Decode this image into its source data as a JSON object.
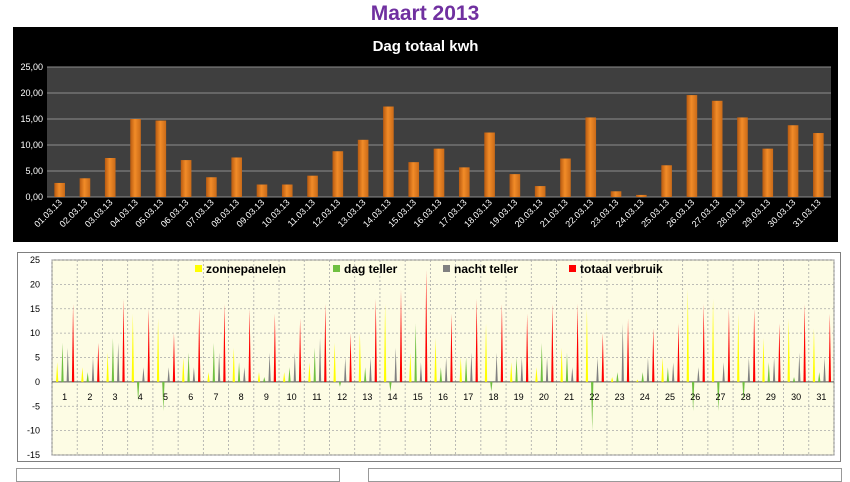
{
  "page_title": "Maart 2013",
  "chart_data": [
    {
      "type": "bar",
      "title": "Dag totaal kwh",
      "categories": [
        "01.03.13",
        "02.03.13",
        "03.03.13",
        "04.03.13",
        "05.03.13",
        "06.03.13",
        "07.03.13",
        "08.03.13",
        "09.03.13",
        "10.03.13",
        "11.03.13",
        "12.03.13",
        "13.03.13",
        "14.03.13",
        "15.03.13",
        "16.03.13",
        "17.03.13",
        "18.03.13",
        "19.03.13",
        "20.03.13",
        "21.03.13",
        "22.03.13",
        "23.03.13",
        "24.03.13",
        "25.03.13",
        "26.03.13",
        "27.03.13",
        "28.03.13",
        "29.03.13",
        "30.03.13",
        "31.03.13"
      ],
      "values": [
        2.7,
        3.6,
        7.5,
        15.0,
        14.7,
        7.1,
        3.8,
        7.6,
        2.4,
        2.4,
        4.1,
        8.8,
        11.0,
        17.4,
        6.7,
        9.3,
        5.7,
        12.4,
        4.4,
        2.1,
        7.4,
        15.3,
        1.1,
        0.4,
        6.1,
        19.6,
        18.5,
        15.3,
        9.3,
        13.8,
        12.3
      ],
      "ylim": [
        0,
        25
      ],
      "yticks": [
        "0,00",
        "5,00",
        "10,00",
        "15,00",
        "20,00",
        "25,00"
      ],
      "grid": true,
      "colors": {
        "background": "#000000",
        "plot": "#3f3f3f",
        "bar": "#f28c28",
        "text": "#ffffff",
        "grid": "#8c8c8c"
      }
    },
    {
      "type": "bar",
      "categories": [
        "1",
        "2",
        "3",
        "4",
        "5",
        "6",
        "7",
        "8",
        "9",
        "10",
        "11",
        "12",
        "13",
        "14",
        "15",
        "16",
        "17",
        "18",
        "19",
        "20",
        "21",
        "22",
        "23",
        "24",
        "25",
        "26",
        "27",
        "28",
        "29",
        "30",
        "31"
      ],
      "ylim": [
        -15,
        25
      ],
      "yticks": [
        "-15",
        "-10",
        "-5",
        "0",
        "5",
        "10",
        "15",
        "20",
        "25"
      ],
      "grid": true,
      "legend_position": "top",
      "series": [
        {
          "name": "zonnepanelen",
          "color": "#ffff00",
          "values": [
            4,
            3,
            6,
            14,
            13,
            5,
            2,
            7,
            2,
            2,
            4,
            8,
            10,
            16,
            6,
            9,
            5,
            12,
            4,
            3,
            7,
            15,
            1,
            0.5,
            5,
            19,
            17,
            14,
            9,
            13,
            11
          ]
        },
        {
          "name": "dag teller",
          "color": "#70c040",
          "values": [
            8,
            2,
            9,
            -4,
            -6,
            6,
            8,
            4,
            1,
            3,
            7,
            -1,
            3,
            -2,
            12,
            3,
            5,
            -2,
            5,
            8,
            6,
            -10,
            2,
            2,
            3,
            -6,
            -6,
            -4,
            4,
            1,
            2
          ]
        },
        {
          "name": "nacht teller",
          "color": "#808080",
          "values": [
            7,
            5,
            8,
            3,
            3,
            3,
            6,
            3,
            6,
            6,
            9,
            5,
            5,
            7,
            4,
            5,
            6,
            6,
            5,
            5,
            3,
            5,
            12,
            5,
            4,
            3,
            4,
            5,
            5,
            6,
            5
          ]
        },
        {
          "name": "totaal verbruik",
          "color": "#ff0000",
          "values": [
            16,
            8,
            17,
            15,
            10,
            15,
            16,
            15,
            14,
            13,
            16,
            10,
            17,
            19,
            23,
            14,
            17,
            16,
            14,
            16,
            16,
            10,
            13,
            11,
            12,
            16,
            15,
            15,
            12,
            16,
            14
          ]
        }
      ],
      "colors": {
        "plot": "#fdfce4",
        "grid": "#a8a8a8",
        "text": "#000000"
      }
    }
  ]
}
